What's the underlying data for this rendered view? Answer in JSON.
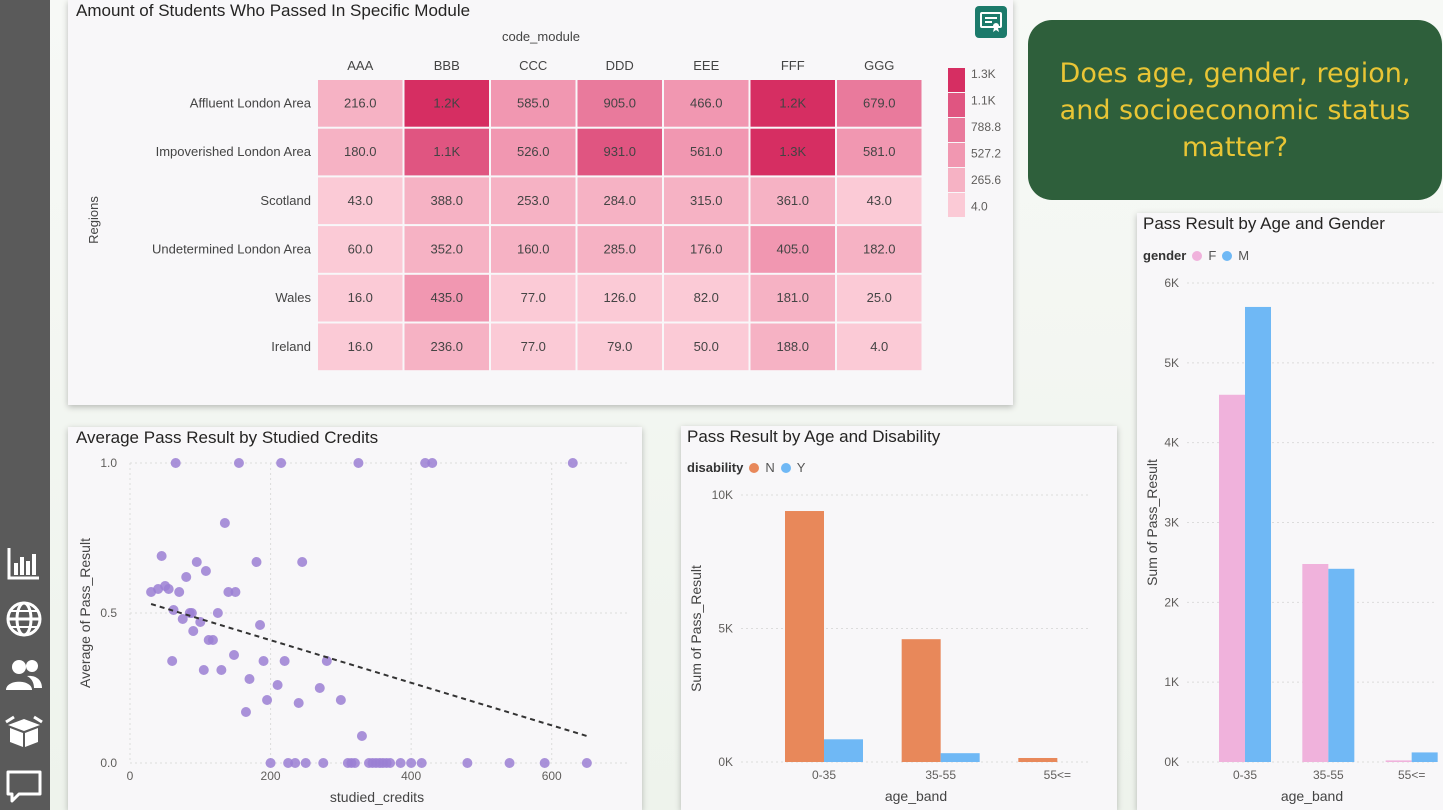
{
  "sidebar": {
    "icons": [
      "bar-chart-icon",
      "globe-icon",
      "people-icon",
      "box-icon",
      "chat-icon"
    ]
  },
  "heatmap": {
    "title": "Amount of Students Who Passed In Specific Module",
    "column_axis_label": "code_module",
    "row_axis_label": "Regions",
    "columns": [
      "AAA",
      "BBB",
      "CCC",
      "DDD",
      "EEE",
      "FFF",
      "GGG"
    ],
    "rows": [
      {
        "label": "Affluent London Area",
        "values": [
          216.0,
          1200,
          585.0,
          905.0,
          466.0,
          1200,
          679.0
        ],
        "display": [
          "216.0",
          "1.2K",
          "585.0",
          "905.0",
          "466.0",
          "1.2K",
          "679.0"
        ]
      },
      {
        "label": "Impoverished London Area",
        "values": [
          180.0,
          1100,
          526.0,
          931.0,
          561.0,
          1300,
          581.0
        ],
        "display": [
          "180.0",
          "1.1K",
          "526.0",
          "931.0",
          "561.0",
          "1.3K",
          "581.0"
        ]
      },
      {
        "label": "Scotland",
        "values": [
          43.0,
          388.0,
          253.0,
          284.0,
          315.0,
          361.0,
          43.0
        ],
        "display": [
          "43.0",
          "388.0",
          "253.0",
          "284.0",
          "315.0",
          "361.0",
          "43.0"
        ]
      },
      {
        "label": "Undetermined London Area",
        "values": [
          60.0,
          352.0,
          160.0,
          285.0,
          176.0,
          405.0,
          182.0
        ],
        "display": [
          "60.0",
          "352.0",
          "160.0",
          "285.0",
          "176.0",
          "405.0",
          "182.0"
        ]
      },
      {
        "label": "Wales",
        "values": [
          16.0,
          435.0,
          77.0,
          126.0,
          82.0,
          181.0,
          25.0
        ],
        "display": [
          "16.0",
          "435.0",
          "77.0",
          "126.0",
          "82.0",
          "181.0",
          "25.0"
        ]
      },
      {
        "label": "Ireland",
        "values": [
          16.0,
          236.0,
          77.0,
          79.0,
          50.0,
          188.0,
          4.0
        ],
        "display": [
          "16.0",
          "236.0",
          "77.0",
          "79.0",
          "50.0",
          "188.0",
          "4.0"
        ]
      }
    ],
    "legend_labels": [
      "1.3K",
      "1.1K",
      "788.8",
      "527.2",
      "265.6",
      "4.0"
    ],
    "legend_colors": [
      "#d62e62",
      "#e05581",
      "#e97a9c",
      "#f197b1",
      "#f6b2c4",
      "#fbcad6"
    ],
    "scale_min": 4.0,
    "scale_max": 1300
  },
  "callout": {
    "text": "Does age, gender, region, and socioeconomic status matter?"
  },
  "scatter": {
    "title": "Average Pass Result by Studied Credits",
    "xlabel": "studied_credits",
    "ylabel": "Average of Pass_Result",
    "color": "#9b7fd4"
  },
  "disability_chart": {
    "title": "Pass Result by Age and Disability",
    "legend_title": "disability",
    "xlabel": "age_band",
    "ylabel": "Sum of Pass_Result",
    "series_colors": [
      "#e8885a",
      "#6fb8f5"
    ]
  },
  "gender_chart": {
    "title": "Pass Result by Age and Gender",
    "legend_title": "gender",
    "xlabel": "age_band",
    "ylabel": "Sum of Pass_Result",
    "series_colors": [
      "#f0b2dc",
      "#6fb8f5"
    ]
  },
  "chart_data": [
    {
      "type": "heatmap",
      "title": "Amount of Students Who Passed In Specific Module",
      "x": [
        "AAA",
        "BBB",
        "CCC",
        "DDD",
        "EEE",
        "FFF",
        "GGG"
      ],
      "y": [
        "Affluent London Area",
        "Impoverished London Area",
        "Scotland",
        "Undetermined London Area",
        "Wales",
        "Ireland"
      ],
      "xlabel": "code_module",
      "ylabel": "Regions"
    },
    {
      "type": "scatter",
      "title": "Average Pass Result by Studied Credits",
      "xlabel": "studied_credits",
      "ylabel": "Average of Pass_Result",
      "xlim": [
        0,
        700
      ],
      "ylim": [
        0.0,
        1.0
      ],
      "x_ticks": [
        "0",
        "200",
        "400",
        "600"
      ],
      "y_ticks": [
        "0.0",
        "0.5",
        "1.0"
      ],
      "points": [
        [
          30,
          0.57
        ],
        [
          40,
          0.58
        ],
        [
          45,
          0.69
        ],
        [
          50,
          0.59
        ],
        [
          55,
          0.58
        ],
        [
          60,
          0.34
        ],
        [
          62,
          0.51
        ],
        [
          65,
          1.0
        ],
        [
          70,
          0.57
        ],
        [
          75,
          0.48
        ],
        [
          80,
          0.62
        ],
        [
          85,
          0.5
        ],
        [
          88,
          0.5
        ],
        [
          90,
          0.44
        ],
        [
          95,
          0.67
        ],
        [
          100,
          0.47
        ],
        [
          105,
          0.31
        ],
        [
          108,
          0.64
        ],
        [
          112,
          0.41
        ],
        [
          118,
          0.41
        ],
        [
          125,
          0.5
        ],
        [
          130,
          0.31
        ],
        [
          135,
          0.8
        ],
        [
          140,
          0.57
        ],
        [
          148,
          0.36
        ],
        [
          150,
          0.57
        ],
        [
          155,
          1.0
        ],
        [
          165,
          0.17
        ],
        [
          170,
          0.28
        ],
        [
          180,
          0.67
        ],
        [
          185,
          0.46
        ],
        [
          190,
          0.34
        ],
        [
          195,
          0.21
        ],
        [
          200,
          0.0
        ],
        [
          210,
          0.26
        ],
        [
          215,
          1.0
        ],
        [
          220,
          0.34
        ],
        [
          225,
          0.0
        ],
        [
          235,
          0.0
        ],
        [
          240,
          0.2
        ],
        [
          245,
          0.67
        ],
        [
          250,
          0.0
        ],
        [
          270,
          0.25
        ],
        [
          275,
          0.0
        ],
        [
          280,
          0.34
        ],
        [
          300,
          0.21
        ],
        [
          310,
          0.0
        ],
        [
          315,
          0.0
        ],
        [
          320,
          0.0
        ],
        [
          325,
          1.0
        ],
        [
          330,
          0.09
        ],
        [
          340,
          0.0
        ],
        [
          345,
          0.0
        ],
        [
          350,
          0.0
        ],
        [
          355,
          0.0
        ],
        [
          360,
          0.0
        ],
        [
          365,
          0.0
        ],
        [
          370,
          0.0
        ],
        [
          385,
          0.0
        ],
        [
          400,
          0.0
        ],
        [
          415,
          0.0
        ],
        [
          420,
          1.0
        ],
        [
          430,
          1.0
        ],
        [
          480,
          0.0
        ],
        [
          540,
          0.0
        ],
        [
          590,
          0.0
        ],
        [
          630,
          1.0
        ],
        [
          650,
          0.0
        ]
      ],
      "trendline": [
        [
          30,
          0.53
        ],
        [
          650,
          0.09
        ]
      ]
    },
    {
      "type": "bar",
      "title": "Pass Result by Age and Disability",
      "categories": [
        "0-35",
        "35-55",
        "55<="
      ],
      "legend_title": "disability",
      "series": [
        {
          "name": "N",
          "values": [
            9400,
            4600,
            150
          ]
        },
        {
          "name": "Y",
          "values": [
            850,
            330,
            0
          ]
        }
      ],
      "xlabel": "age_band",
      "ylabel": "Sum of Pass_Result",
      "ylim": [
        0,
        10000
      ],
      "y_ticks": [
        "0K",
        "5K",
        "10K"
      ]
    },
    {
      "type": "bar",
      "title": "Pass Result by Age and Gender",
      "categories": [
        "0-35",
        "35-55",
        "55<="
      ],
      "legend_title": "gender",
      "series": [
        {
          "name": "F",
          "values": [
            4600,
            2480,
            20
          ]
        },
        {
          "name": "M",
          "values": [
            5700,
            2420,
            120
          ]
        }
      ],
      "xlabel": "age_band",
      "ylabel": "Sum of Pass_Result",
      "ylim": [
        0,
        6000
      ],
      "y_ticks": [
        "0K",
        "1K",
        "2K",
        "3K",
        "4K",
        "5K",
        "6K"
      ]
    }
  ]
}
